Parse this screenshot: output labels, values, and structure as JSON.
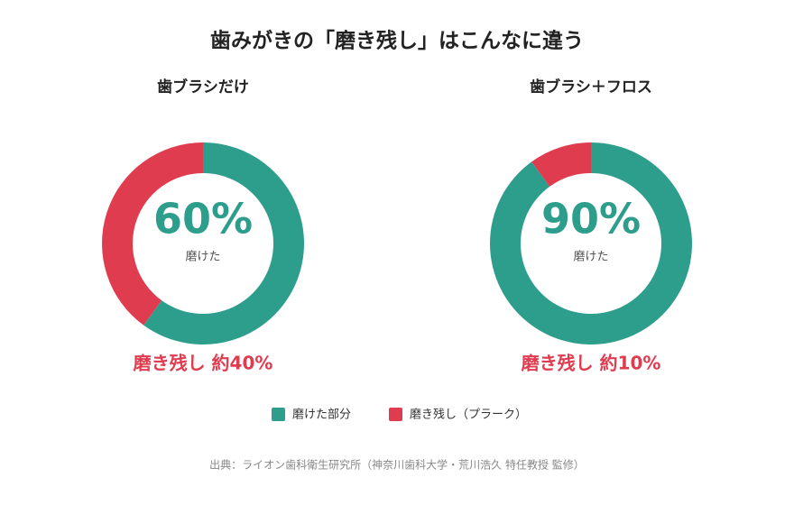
{
  "title": "歯みがきの「磨き残し」はこんなに違う",
  "legend": {
    "labels": [
      "磨けた部分",
      "磨き残し（プラーク）"
    ],
    "colors": [
      "#2e9e8c",
      "#e03c4f"
    ]
  },
  "source": "出典：ライオン歯科衛生研究所（神奈川歯科大学・荒川浩久 特任教授 監修）",
  "chart_data": [
    {
      "type": "donut",
      "title": "歯ブラシだけ",
      "values": [
        60,
        40
      ],
      "value_labels": [
        "60%",
        "磨き残し 約40%"
      ],
      "center_caption": "磨けた"
    },
    {
      "type": "donut",
      "title": "歯ブラシ＋フロス",
      "values": [
        90,
        10
      ],
      "value_labels": [
        "90%",
        "磨き残し 約10%"
      ],
      "center_caption": "磨けた"
    }
  ]
}
